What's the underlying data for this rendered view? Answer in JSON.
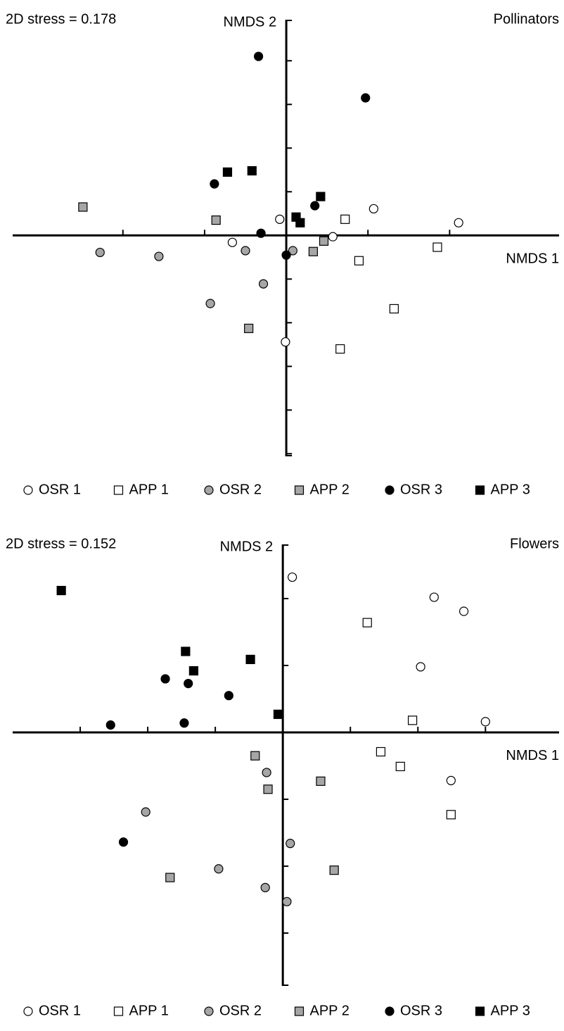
{
  "chart_data": [
    {
      "type": "scatter",
      "title": "Pollinators",
      "annotation": "2D stress = 0.178",
      "xlabel": "NMDS 1",
      "ylabel": "NMDS 2",
      "xlim": [
        -3.35,
        3.34
      ],
      "ylim": [
        -5.06,
        4.94
      ],
      "xticks": [
        -2,
        -1,
        1,
        2
      ],
      "yticks": [
        4,
        3,
        2,
        1,
        -1,
        -2,
        -3,
        -4,
        -5
      ],
      "series": [
        {
          "name": "OSR 1",
          "marker": "circle",
          "color": "#ffffff",
          "x": [
            -0.08,
            -0.66,
            0.57,
            1.07,
            2.11,
            -0.01
          ],
          "values": [
            0.37,
            -0.16,
            -0.03,
            0.61,
            0.29,
            -2.44
          ]
        },
        {
          "name": "APP 1",
          "marker": "square",
          "color": "#ffffff",
          "x": [
            0.72,
            0.89,
            1.85,
            1.32,
            0.66
          ],
          "values": [
            0.37,
            -0.58,
            -0.27,
            -1.68,
            -2.6
          ]
        },
        {
          "name": "OSR 2",
          "marker": "circle",
          "color": "#a6a6a6",
          "x": [
            -2.28,
            -1.56,
            -0.93,
            -0.5,
            -0.28,
            0.08
          ],
          "values": [
            -0.39,
            -0.48,
            -1.56,
            -0.35,
            -1.11,
            -0.35
          ]
        },
        {
          "name": "APP 2",
          "marker": "square",
          "color": "#a6a6a6",
          "x": [
            -2.49,
            -0.86,
            -0.46,
            0.33,
            0.46
          ],
          "values": [
            0.65,
            0.35,
            -2.13,
            -0.37,
            -0.13
          ]
        },
        {
          "name": "OSR 3",
          "marker": "circle",
          "color": "#000000",
          "x": [
            -0.34,
            0.97,
            -0.88,
            0.35,
            -0.31,
            0.0
          ],
          "values": [
            4.1,
            3.15,
            1.18,
            0.68,
            0.05,
            -0.45
          ]
        },
        {
          "name": "APP 3",
          "marker": "square",
          "color": "#000000",
          "x": [
            -0.72,
            -0.42,
            0.42,
            0.12,
            0.17
          ],
          "values": [
            1.45,
            1.48,
            0.89,
            0.42,
            0.29
          ]
        }
      ]
    },
    {
      "type": "scatter",
      "title": "Flowers",
      "annotation": "2D stress = 0.152",
      "xlabel": "NMDS 1",
      "ylabel": "NMDS 2",
      "xlim": [
        -4.0,
        4.09
      ],
      "ylim": [
        -3.79,
        2.81
      ],
      "xticks": [
        -3,
        -2,
        -1,
        1,
        2,
        3
      ],
      "yticks": [
        2,
        1,
        -1,
        -2,
        -3
      ],
      "series": [
        {
          "name": "OSR 1",
          "marker": "circle",
          "color": "#ffffff",
          "x": [
            0.14,
            2.24,
            2.68,
            2.04,
            3.0,
            2.49
          ],
          "values": [
            2.32,
            2.02,
            1.81,
            0.98,
            0.16,
            -0.72
          ]
        },
        {
          "name": "APP 1",
          "marker": "square",
          "color": "#ffffff",
          "x": [
            1.25,
            1.92,
            1.45,
            1.74,
            2.49
          ],
          "values": [
            1.64,
            0.18,
            -0.29,
            -0.51,
            -1.23
          ]
        },
        {
          "name": "OSR 2",
          "marker": "circle",
          "color": "#a6a6a6",
          "x": [
            -0.24,
            -2.03,
            0.11,
            -0.95,
            -0.26,
            0.06
          ],
          "values": [
            -0.6,
            -1.19,
            -1.66,
            -2.04,
            -2.32,
            -2.53
          ]
        },
        {
          "name": "APP 2",
          "marker": "square",
          "color": "#a6a6a6",
          "x": [
            -0.41,
            -0.22,
            0.56,
            0.76,
            -1.67
          ],
          "values": [
            -0.35,
            -0.85,
            -0.73,
            -2.06,
            -2.17
          ]
        },
        {
          "name": "OSR 3",
          "marker": "circle",
          "color": "#000000",
          "x": [
            -1.74,
            -1.4,
            -0.8,
            -2.55,
            -1.46,
            -2.36
          ],
          "values": [
            0.8,
            0.73,
            0.55,
            0.11,
            0.14,
            -1.64
          ]
        },
        {
          "name": "APP 3",
          "marker": "square",
          "color": "#000000",
          "x": [
            -3.28,
            -1.44,
            -1.32,
            -0.48,
            -0.07
          ],
          "values": [
            2.12,
            1.21,
            0.92,
            1.09,
            0.27
          ]
        }
      ]
    }
  ]
}
